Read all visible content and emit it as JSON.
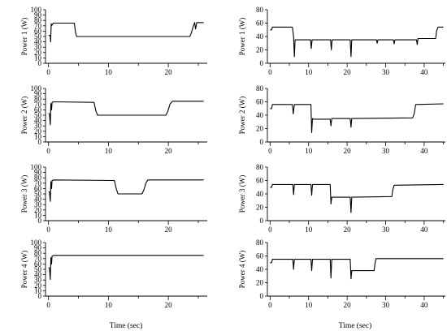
{
  "figure": {
    "xlabels": [
      "Time (sec)",
      "Time (sec)"
    ]
  },
  "chart_data": [
    {
      "type": "line",
      "column": "left",
      "row": 0,
      "ylabel": "Power 1 (W)",
      "xlim": [
        -0.5,
        26.5
      ],
      "ylim": [
        0,
        100
      ],
      "xticks": [
        0,
        10,
        20
      ],
      "yticks": [
        0,
        10,
        20,
        30,
        40,
        50,
        60,
        70,
        80,
        90,
        100
      ],
      "grid": false,
      "series": [
        {
          "x": [
            0,
            0.15,
            0.3,
            0.35,
            0.45,
            0.5,
            0.8,
            4.3,
            4.5,
            4.7,
            23.6,
            23.85,
            24.2,
            24.4,
            24.55,
            24.75,
            25.9
          ],
          "y": [
            52,
            52,
            52,
            40,
            74,
            70,
            75,
            75,
            58,
            50,
            50,
            57,
            70,
            76,
            64,
            76,
            76
          ]
        }
      ]
    },
    {
      "type": "line",
      "column": "left",
      "row": 1,
      "ylabel": "Power 2 (W)",
      "xlim": [
        -0.5,
        26.5
      ],
      "ylim": [
        0,
        100
      ],
      "xticks": [
        0,
        10,
        20
      ],
      "yticks": [
        0,
        10,
        20,
        30,
        40,
        50,
        60,
        70,
        80,
        90,
        100
      ],
      "grid": false,
      "series": [
        {
          "x": [
            0,
            0.15,
            0.3,
            0.4,
            0.5,
            0.6,
            0.9,
            7.6,
            7.9,
            8.2,
            19.6,
            19.9,
            20.3,
            20.7,
            25.9
          ],
          "y": [
            53,
            53,
            32,
            72,
            60,
            74,
            75,
            74,
            58,
            50,
            50,
            57,
            71,
            76,
            76
          ]
        }
      ]
    },
    {
      "type": "line",
      "column": "left",
      "row": 2,
      "ylabel": "Power 3 (W)",
      "xlim": [
        -0.5,
        26.5
      ],
      "ylim": [
        0,
        100
      ],
      "xticks": [
        0,
        10,
        20
      ],
      "yticks": [
        0,
        10,
        20,
        30,
        40,
        50,
        60,
        70,
        80,
        90,
        100
      ],
      "grid": false,
      "series": [
        {
          "x": [
            0,
            0.15,
            0.3,
            0.4,
            0.5,
            0.6,
            0.9,
            11.0,
            11.3,
            11.6,
            15.6,
            15.9,
            16.3,
            16.6,
            25.9
          ],
          "y": [
            54,
            54,
            36,
            73,
            60,
            75,
            76,
            75,
            60,
            50,
            50,
            57,
            71,
            76,
            76
          ]
        }
      ]
    },
    {
      "type": "line",
      "column": "left",
      "row": 3,
      "ylabel": "Power 4 (W)",
      "xlim": [
        -0.5,
        26.5
      ],
      "ylim": [
        0,
        100
      ],
      "xticks": [
        0,
        10,
        20
      ],
      "yticks": [
        0,
        10,
        20,
        30,
        40,
        50,
        60,
        70,
        80,
        90,
        100
      ],
      "grid": false,
      "series": [
        {
          "x": [
            0,
            0.15,
            0.3,
            0.4,
            0.5,
            0.6,
            0.9,
            25.9
          ],
          "y": [
            53,
            53,
            31,
            72,
            60,
            75,
            76,
            76
          ]
        }
      ]
    },
    {
      "type": "line",
      "column": "right",
      "row": 0,
      "ylabel": "Power 1 (W)",
      "xlim": [
        -0.7,
        45.5
      ],
      "ylim": [
        0,
        80
      ],
      "xticks": [
        0,
        10,
        20,
        30,
        40
      ],
      "yticks": [
        0,
        20,
        40,
        60,
        80
      ],
      "grid": false,
      "series": [
        {
          "x": [
            0,
            0.4,
            0.6,
            5.8,
            6.1,
            6.3,
            6.5,
            6.8,
            10.5,
            10.7,
            10.9,
            15.7,
            15.9,
            16.1,
            20.8,
            21.0,
            21.2,
            27.6,
            27.8,
            28.0,
            32.0,
            32.2,
            32.4,
            38.0,
            38.2,
            38.4,
            43.0,
            43.2,
            43.6,
            45.0
          ],
          "y": [
            50,
            50,
            54,
            54,
            40,
            10,
            35,
            35,
            35,
            22,
            35,
            35,
            20,
            35,
            35,
            10,
            35,
            35,
            30,
            35,
            35,
            29,
            35,
            35,
            28,
            37,
            37,
            48,
            54,
            54
          ]
        }
      ]
    },
    {
      "type": "line",
      "column": "right",
      "row": 1,
      "ylabel": "Power 2 (W)",
      "xlim": [
        -0.7,
        45.5
      ],
      "ylim": [
        0,
        80
      ],
      "xticks": [
        0,
        10,
        20,
        30,
        40
      ],
      "yticks": [
        0,
        20,
        40,
        60,
        80
      ],
      "grid": false,
      "series": [
        {
          "x": [
            0,
            0.4,
            0.6,
            5.8,
            6.0,
            6.3,
            10.6,
            10.8,
            11.0,
            11.3,
            15.6,
            15.8,
            16.0,
            20.8,
            21.0,
            21.2,
            37.0,
            37.4,
            37.8,
            45.0
          ],
          "y": [
            50,
            50,
            56,
            56,
            42,
            56,
            56,
            14,
            35,
            34,
            34,
            24,
            35,
            35,
            22,
            35,
            36,
            42,
            56,
            57
          ]
        }
      ]
    },
    {
      "type": "line",
      "column": "right",
      "row": 2,
      "ylabel": "Power 3 (W)",
      "xlim": [
        -0.7,
        45.5
      ],
      "ylim": [
        0,
        80
      ],
      "xticks": [
        0,
        10,
        20,
        30,
        40
      ],
      "yticks": [
        0,
        20,
        40,
        60,
        80
      ],
      "grid": false,
      "series": [
        {
          "x": [
            0,
            0.4,
            0.6,
            5.9,
            6.1,
            6.3,
            10.6,
            10.8,
            11.0,
            15.6,
            15.8,
            16.0,
            20.8,
            21.0,
            21.2,
            31.6,
            31.8,
            32.2,
            45.0
          ],
          "y": [
            50,
            50,
            54,
            54,
            39,
            54,
            54,
            38,
            54,
            54,
            25,
            35,
            35,
            12,
            35,
            36,
            45,
            53,
            54
          ]
        }
      ]
    },
    {
      "type": "line",
      "column": "right",
      "row": 3,
      "ylabel": "Power 4 (W)",
      "xlim": [
        -0.7,
        45.5
      ],
      "ylim": [
        0,
        80
      ],
      "xticks": [
        0,
        10,
        20,
        30,
        40
      ],
      "yticks": [
        0,
        20,
        40,
        60,
        80
      ],
      "grid": false,
      "series": [
        {
          "x": [
            0,
            0.4,
            0.6,
            5.9,
            6.1,
            6.3,
            10.6,
            10.8,
            11.0,
            15.6,
            15.8,
            16.0,
            20.8,
            21.0,
            21.2,
            27.0,
            27.2,
            27.5,
            45.0
          ],
          "y": [
            50,
            50,
            55,
            55,
            40,
            55,
            55,
            38,
            55,
            55,
            27,
            55,
            55,
            26,
            38,
            38,
            48,
            56,
            56
          ]
        }
      ]
    }
  ]
}
